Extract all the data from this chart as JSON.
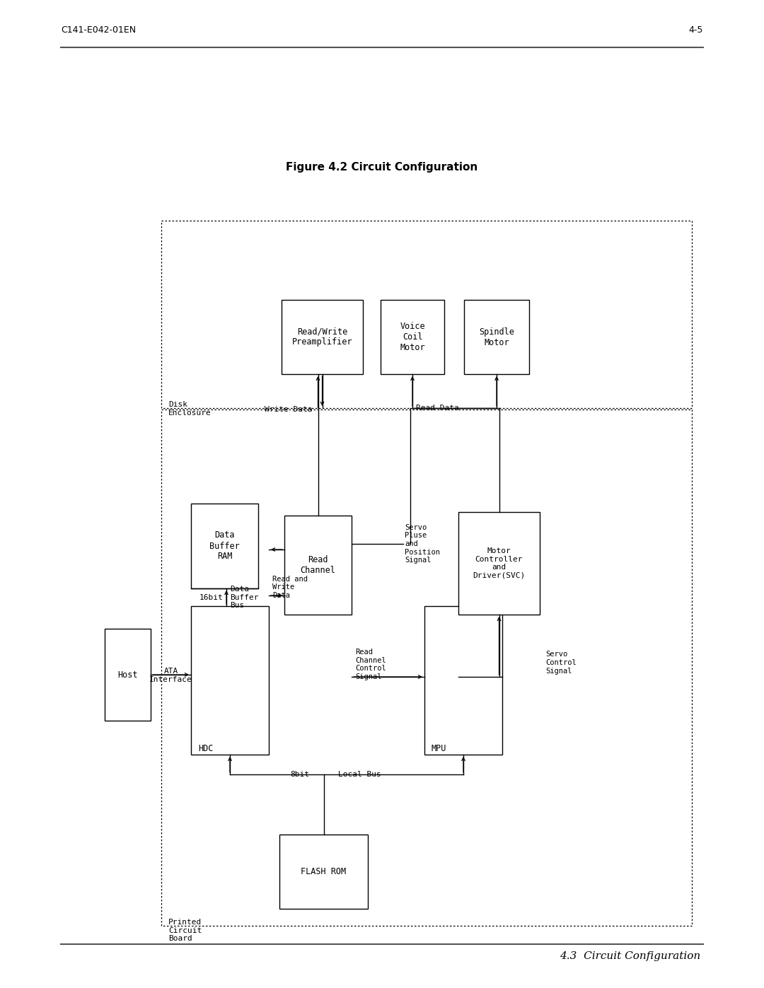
{
  "title_header": "4.3  Circuit Configuration",
  "figure_caption": "Figure 4.2 Circuit Configuration",
  "footer_left": "C141-E042-01EN",
  "footer_right": "4-5",
  "bg_color": "#ffffff",
  "page_width": 10.8,
  "page_height": 13.97
}
